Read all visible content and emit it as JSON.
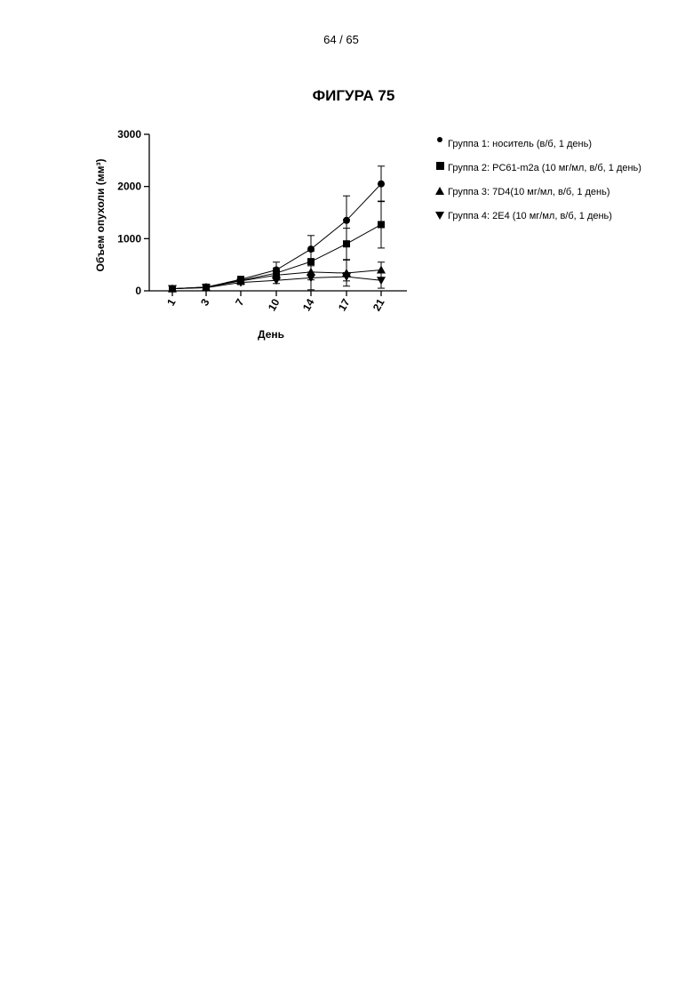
{
  "page": {
    "number": "64 / 65",
    "figure_title": "ФИГУРА 75"
  },
  "chart_data": {
    "type": "line",
    "title": "",
    "xlabel": "День",
    "ylabel": "Объем опухоли (мм³)",
    "categories": [
      "1",
      "3",
      "7",
      "10",
      "14",
      "17",
      "21"
    ],
    "ylim": [
      0,
      3000
    ],
    "yticks": [
      "0",
      "1000",
      "2000",
      "3000"
    ],
    "grid": false,
    "legend_position": "right",
    "error_bars": true,
    "series": [
      {
        "name": "Группа 1: носитель (в/б, 1 день)",
        "marker": "circle",
        "values": [
          40,
          70,
          220,
          400,
          800,
          1350,
          2050
        ],
        "errors": [
          10,
          20,
          60,
          150,
          260,
          470,
          340
        ]
      },
      {
        "name": "Группа 2: PC61-m2a (10 мг/мл, в/б, 1 день)",
        "marker": "square",
        "values": [
          40,
          70,
          200,
          340,
          560,
          900,
          1270
        ],
        "errors": [
          10,
          20,
          60,
          100,
          200,
          300,
          450
        ]
      },
      {
        "name": "Группа 3: 7D4(10 мг/мл, в/б, 1 день)",
        "marker": "triangle-up",
        "values": [
          40,
          70,
          190,
          300,
          360,
          340,
          400
        ],
        "errors": [
          10,
          20,
          60,
          80,
          150,
          250,
          150
        ]
      },
      {
        "name": "Группа 4: 2E4 (10 мг/мл, в/б, 1 день)",
        "marker": "triangle-down",
        "values": [
          40,
          60,
          160,
          200,
          250,
          270,
          200
        ],
        "errors": [
          10,
          20,
          40,
          60,
          230,
          80,
          150
        ]
      }
    ]
  }
}
